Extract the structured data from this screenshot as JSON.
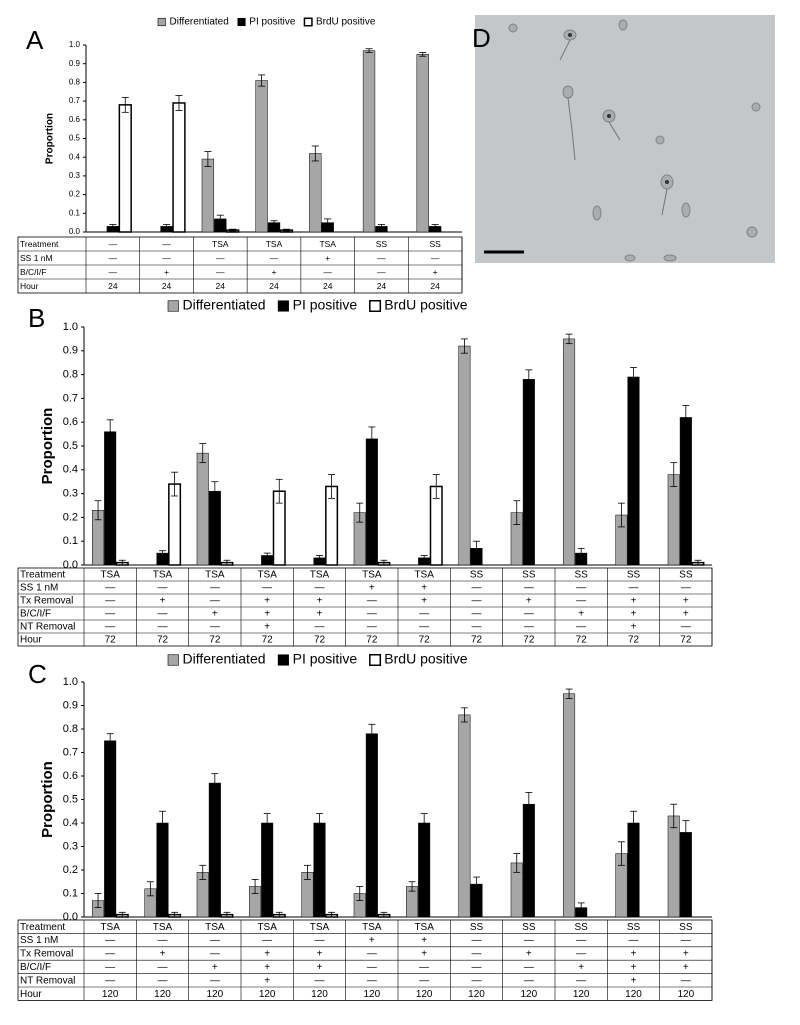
{
  "chart_data": [
    {
      "type": "bar",
      "panel": "A",
      "y_label": "Proportion",
      "series": [
        {
          "name": "Differentiated",
          "color": "#a6a6a6",
          "values": [
            0,
            0,
            0.39,
            0.81,
            0.42,
            0.97,
            0.95
          ],
          "errors": [
            0,
            0,
            0.04,
            0.03,
            0.04,
            0.01,
            0.01
          ]
        },
        {
          "name": "PI positive",
          "color": "#000000",
          "values": [
            0.03,
            0.03,
            0.07,
            0.05,
            0.05,
            0.03,
            0.03
          ],
          "errors": [
            0.01,
            0.01,
            0.02,
            0.01,
            0.02,
            0.01,
            0.01
          ]
        },
        {
          "name": "BrdU positive",
          "color": "#ffffff",
          "values": [
            0.68,
            0.69,
            0.01,
            0.01,
            0,
            0,
            0
          ],
          "errors": [
            0.04,
            0.04,
            0.005,
            0.005,
            0,
            0,
            0
          ]
        }
      ],
      "ylim": [
        0,
        1
      ],
      "yticks": [
        {
          "value": 0,
          "label": "0.0"
        },
        0.1,
        0.2,
        0.3,
        0.4,
        0.5,
        0.6,
        0.7,
        0.8,
        0.9,
        {
          "value": 1,
          "label": "1.0"
        }
      ],
      "table": {
        "rows": [
          {
            "label": "Treatment",
            "cells": [
              "—",
              "—",
              "TSA",
              "TSA",
              "TSA",
              "SS",
              "SS"
            ]
          },
          {
            "label": "SS 1 nM",
            "cells": [
              "—",
              "—",
              "—",
              "—",
              "+",
              "—",
              "—"
            ]
          },
          {
            "label": "B/C/I/F",
            "cells": [
              "—",
              "+",
              "—",
              "+",
              "—",
              "—",
              "+"
            ]
          },
          {
            "label": "Hour",
            "cells": [
              "24",
              "24",
              "24",
              "24",
              "24",
              "24",
              "24"
            ]
          }
        ]
      }
    },
    {
      "type": "bar",
      "panel": "B",
      "y_label": "Proportion",
      "series": [
        {
          "name": "Differentiated",
          "color": "#a6a6a6",
          "values": [
            0.23,
            0,
            0.47,
            0,
            0,
            0.22,
            0,
            0.92,
            0.22,
            0.95,
            0.21,
            0.38
          ],
          "errors": [
            0.04,
            0,
            0.04,
            0,
            0,
            0.04,
            0,
            0.03,
            0.05,
            0.02,
            0.05,
            0.05
          ]
        },
        {
          "name": "PI positive",
          "color": "#000000",
          "values": [
            0.56,
            0.05,
            0.31,
            0.04,
            0.03,
            0.53,
            0.03,
            0.07,
            0.78,
            0.05,
            0.79,
            0.62
          ],
          "errors": [
            0.05,
            0.01,
            0.04,
            0.01,
            0.01,
            0.05,
            0.01,
            0.03,
            0.04,
            0.02,
            0.04,
            0.05
          ]
        },
        {
          "name": "BrdU positive",
          "color": "#ffffff",
          "values": [
            0.01,
            0.34,
            0.01,
            0.31,
            0.33,
            0.01,
            0.33,
            0,
            0,
            0,
            0,
            0.01
          ],
          "errors": [
            0.01,
            0.05,
            0.01,
            0.05,
            0.05,
            0.01,
            0.05,
            0,
            0,
            0,
            0,
            0.01
          ]
        }
      ],
      "ylim": [
        0,
        1
      ],
      "yticks": [
        {
          "value": 0,
          "label": "0.0"
        },
        0.1,
        0.2,
        0.3,
        0.4,
        0.5,
        0.6,
        0.7,
        0.8,
        0.9,
        {
          "value": 1,
          "label": "1.0"
        }
      ],
      "table": {
        "rows": [
          {
            "label": "Treatment",
            "cells": [
              "TSA",
              "TSA",
              "TSA",
              "TSA",
              "TSA",
              "TSA",
              "TSA",
              "SS",
              "SS",
              "SS",
              "SS",
              "SS"
            ]
          },
          {
            "label": "SS 1 nM",
            "cells": [
              "—",
              "—",
              "—",
              "—",
              "—",
              "+",
              "+",
              "—",
              "—",
              "—",
              "—",
              "—"
            ]
          },
          {
            "label": "Tx Removal",
            "cells": [
              "—",
              "+",
              "—",
              "+",
              "+",
              "—",
              "+",
              "—",
              "+",
              "—",
              "+",
              "+"
            ]
          },
          {
            "label": "B/C/I/F",
            "cells": [
              "—",
              "—",
              "+",
              "+",
              "+",
              "—",
              "—",
              "—",
              "—",
              "+",
              "+",
              "+"
            ]
          },
          {
            "label": "NT Removal",
            "cells": [
              "—",
              "—",
              "—",
              "+",
              "—",
              "—",
              "—",
              "—",
              "—",
              "—",
              "+",
              "—"
            ]
          },
          {
            "label": "Hour",
            "cells": [
              "72",
              "72",
              "72",
              "72",
              "72",
              "72",
              "72",
              "72",
              "72",
              "72",
              "72",
              "72"
            ]
          }
        ]
      }
    },
    {
      "type": "bar",
      "panel": "C",
      "y_label": "Proportion",
      "series": [
        {
          "name": "Differentiated",
          "color": "#a6a6a6",
          "values": [
            0.07,
            0.12,
            0.19,
            0.13,
            0.19,
            0.1,
            0.13,
            0.86,
            0.23,
            0.95,
            0.27,
            0.43
          ],
          "errors": [
            0.03,
            0.03,
            0.03,
            0.03,
            0.03,
            0.03,
            0.02,
            0.03,
            0.04,
            0.02,
            0.05,
            0.05
          ]
        },
        {
          "name": "PI positive",
          "color": "#000000",
          "values": [
            0.75,
            0.4,
            0.57,
            0.4,
            0.4,
            0.78,
            0.4,
            0.14,
            0.48,
            0.04,
            0.4,
            0.36
          ],
          "errors": [
            0.03,
            0.05,
            0.04,
            0.04,
            0.04,
            0.04,
            0.04,
            0.03,
            0.05,
            0.02,
            0.05,
            0.05
          ]
        },
        {
          "name": "BrdU positive",
          "color": "#ffffff",
          "values": [
            0.01,
            0.01,
            0.01,
            0.01,
            0.01,
            0.01,
            0,
            0,
            0,
            0,
            0,
            0
          ],
          "errors": [
            0.01,
            0.01,
            0.01,
            0.01,
            0.01,
            0.01,
            0,
            0,
            0,
            0,
            0,
            0
          ]
        }
      ],
      "ylim": [
        0,
        1
      ],
      "yticks": [
        {
          "value": 0,
          "label": "0.0"
        },
        0.1,
        0.2,
        0.3,
        0.4,
        0.5,
        0.6,
        0.7,
        0.8,
        0.9,
        {
          "value": 1,
          "label": "1.0"
        }
      ],
      "table": {
        "rows": [
          {
            "label": "Treatment",
            "cells": [
              "TSA",
              "TSA",
              "TSA",
              "TSA",
              "TSA",
              "TSA",
              "TSA",
              "SS",
              "SS",
              "SS",
              "SS",
              "SS"
            ]
          },
          {
            "label": "SS 1 nM",
            "cells": [
              "—",
              "—",
              "—",
              "—",
              "—",
              "+",
              "+",
              "—",
              "—",
              "—",
              "—",
              "—"
            ]
          },
          {
            "label": "Tx Removal",
            "cells": [
              "—",
              "+",
              "—",
              "+",
              "+",
              "—",
              "+",
              "—",
              "+",
              "—",
              "+",
              "+"
            ]
          },
          {
            "label": "B/C/I/F",
            "cells": [
              "—",
              "—",
              "+",
              "+",
              "+",
              "—",
              "—",
              "—",
              "—",
              "+",
              "+",
              "+"
            ]
          },
          {
            "label": "NT Removal",
            "cells": [
              "—",
              "—",
              "—",
              "+",
              "—",
              "—",
              "—",
              "—",
              "—",
              "—",
              "+",
              "—"
            ]
          },
          {
            "label": "Hour",
            "cells": [
              "120",
              "120",
              "120",
              "120",
              "120",
              "120",
              "120",
              "120",
              "120",
              "120",
              "120",
              "120"
            ]
          }
        ]
      }
    }
  ],
  "image_panel": {
    "label": "D"
  }
}
